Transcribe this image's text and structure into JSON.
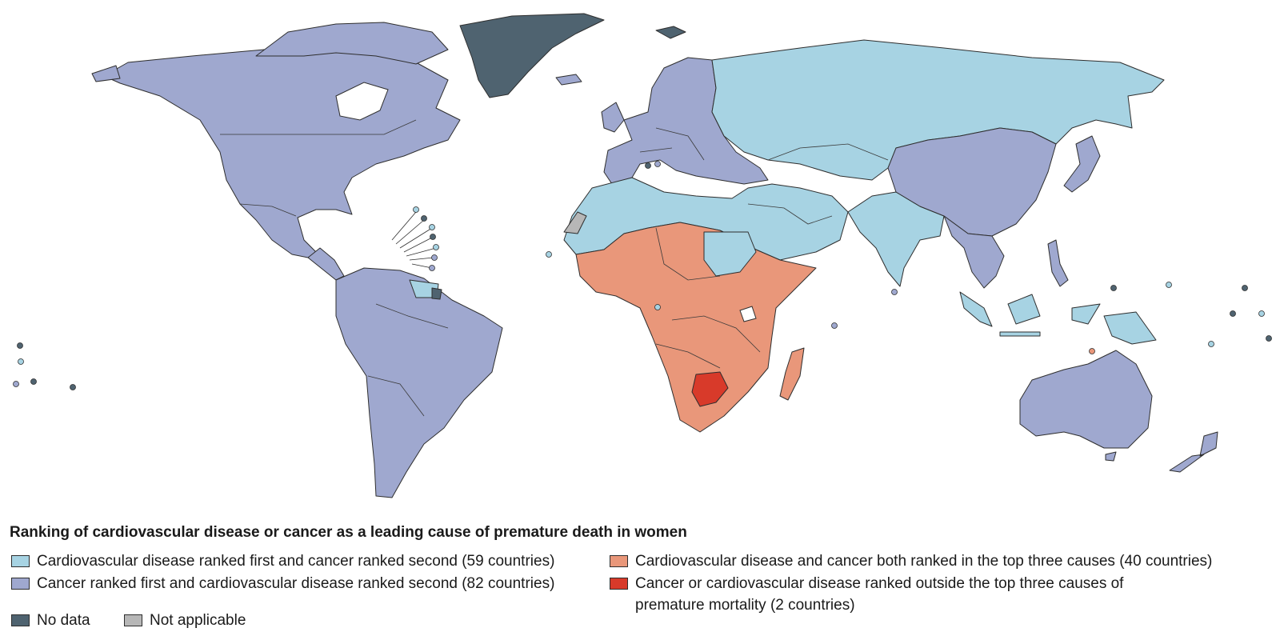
{
  "legend": {
    "title": "Ranking of cardiovascular disease or cancer as a leading cause of premature death in women",
    "items": [
      {
        "key": "cvd_first",
        "label": "Cardiovascular disease ranked first and cancer ranked second (59 countries)",
        "color": "#a7d3e3"
      },
      {
        "key": "cancer_first",
        "label": "Cancer ranked first and cardiovascular disease ranked second (82 countries)",
        "color": "#9fa8cf"
      },
      {
        "key": "both_top3",
        "label": "Cardiovascular disease and cancer both ranked in the top three causes (40 countries)",
        "color": "#e9977a"
      },
      {
        "key": "outside_top3",
        "label_line1": "Cancer or cardiovascular disease ranked outside the top three causes of",
        "label_line2": "premature mortality (2 countries)",
        "color": "#d83a2a"
      },
      {
        "key": "no_data",
        "label": "No data",
        "color": "#4f6370"
      },
      {
        "key": "not_applicable",
        "label": "Not applicable",
        "color": "#b7b7b7"
      }
    ]
  },
  "colors": {
    "cvd_first": "#a7d3e3",
    "cancer_first": "#9fa8cf",
    "both_top3": "#e9977a",
    "outside_top3": "#d83a2a",
    "no_data": "#4f6370",
    "not_applicable": "#b7b7b7",
    "border": "#2e2e2e"
  },
  "regions": [
    {
      "name": "north-america",
      "category": "cancer_first"
    },
    {
      "name": "greenland",
      "category": "no_data"
    },
    {
      "name": "svalbard",
      "category": "no_data"
    },
    {
      "name": "south-america",
      "category": "cancer_first"
    },
    {
      "name": "guianas",
      "category": "cvd_first"
    },
    {
      "name": "french-guiana",
      "category": "no_data"
    },
    {
      "name": "europe",
      "category": "cancer_first"
    },
    {
      "name": "iceland",
      "category": "cancer_first"
    },
    {
      "name": "russia-central-asia",
      "category": "cvd_first"
    },
    {
      "name": "north-africa-middle-east",
      "category": "cvd_first"
    },
    {
      "name": "western-sahara",
      "category": "not_applicable"
    },
    {
      "name": "sub-saharan-africa",
      "category": "both_top3"
    },
    {
      "name": "botswana",
      "category": "outside_top3"
    },
    {
      "name": "madagascar",
      "category": "both_top3"
    },
    {
      "name": "china",
      "category": "cancer_first"
    },
    {
      "name": "japan-korea",
      "category": "cancer_first"
    },
    {
      "name": "south-asia",
      "category": "cvd_first"
    },
    {
      "name": "southeast-asia",
      "category": "cancer_first"
    },
    {
      "name": "indonesia-png",
      "category": "cvd_first"
    },
    {
      "name": "australia",
      "category": "cancer_first"
    },
    {
      "name": "new-zealand",
      "category": "cancer_first"
    }
  ]
}
